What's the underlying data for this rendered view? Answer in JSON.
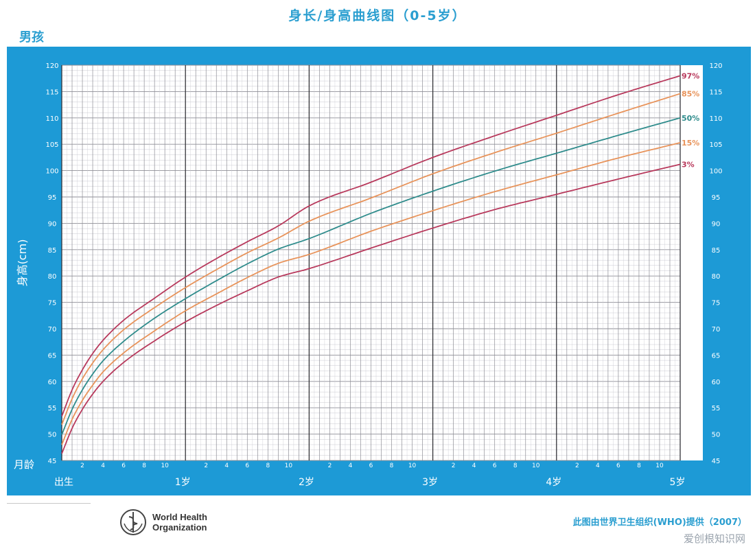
{
  "header": {
    "title": "身长/身高曲线图（0-5岁）",
    "subtitle": "男孩"
  },
  "footer": {
    "who_line1": "World Health",
    "who_line2": "Organization",
    "credit": "此图由世界卫生组织(WHO)提供（2007）",
    "watermark": "爱创根知识网"
  },
  "colors": {
    "frame": "#1d9ad6",
    "title": "#2a9ed0",
    "p97": "#b8395c",
    "p85": "#e8935a",
    "p50": "#2f8c8c",
    "p15": "#e8935a",
    "p3": "#b8395c"
  },
  "chart_data": {
    "type": "line",
    "ylabel": "身高(cm)",
    "xlabel": "月龄",
    "xlim": [
      0,
      60
    ],
    "ylim": [
      45,
      120
    ],
    "y_ticks": [
      45,
      50,
      55,
      60,
      65,
      70,
      75,
      80,
      85,
      90,
      95,
      100,
      105,
      110,
      115,
      120
    ],
    "x_year_labels": [
      {
        "month": 0,
        "label": "出生"
      },
      {
        "month": 12,
        "label": "1岁"
      },
      {
        "month": 24,
        "label": "2岁"
      },
      {
        "month": 36,
        "label": "3岁"
      },
      {
        "month": 48,
        "label": "4岁"
      },
      {
        "month": 60,
        "label": "5岁"
      }
    ],
    "x_month_ticks": [
      "2",
      "4",
      "6",
      "8",
      "10"
    ],
    "x": [
      0,
      1,
      2,
      3,
      4,
      6,
      9,
      12,
      15,
      18,
      21,
      24,
      30,
      36,
      42,
      48,
      54,
      60
    ],
    "series": [
      {
        "name": "97%",
        "color": "#b8395c",
        "values": [
          53.4,
          58.4,
          62.2,
          65.3,
          67.8,
          71.6,
          75.8,
          79.8,
          83.3,
          86.5,
          89.5,
          93.3,
          97.8,
          102.5,
          106.6,
          110.5,
          114.4,
          118.0
        ]
      },
      {
        "name": "85%",
        "color": "#e8935a",
        "values": [
          51.8,
          56.7,
          60.5,
          63.5,
          66.0,
          69.8,
          74.0,
          77.8,
          81.2,
          84.4,
          87.2,
          90.4,
          94.8,
          99.4,
          103.4,
          107.1,
          110.9,
          114.6
        ]
      },
      {
        "name": "50%",
        "color": "#2f8c8c",
        "values": [
          49.9,
          54.7,
          58.4,
          61.4,
          63.9,
          67.6,
          72.0,
          75.7,
          79.1,
          82.3,
          85.1,
          87.1,
          91.9,
          96.1,
          99.9,
          103.3,
          106.7,
          110.0
        ]
      },
      {
        "name": "15%",
        "color": "#e8935a",
        "values": [
          48.0,
          52.8,
          56.4,
          59.3,
          61.8,
          65.4,
          69.6,
          73.4,
          76.6,
          79.7,
          82.4,
          84.1,
          88.5,
          92.4,
          96.0,
          99.2,
          102.4,
          105.3
        ]
      },
      {
        "name": "3%",
        "color": "#b8395c",
        "values": [
          46.3,
          51.1,
          54.7,
          57.6,
          60.0,
          63.6,
          67.7,
          71.3,
          74.4,
          77.2,
          79.8,
          81.4,
          85.3,
          89.1,
          92.6,
          95.5,
          98.4,
          101.2
        ]
      }
    ]
  }
}
